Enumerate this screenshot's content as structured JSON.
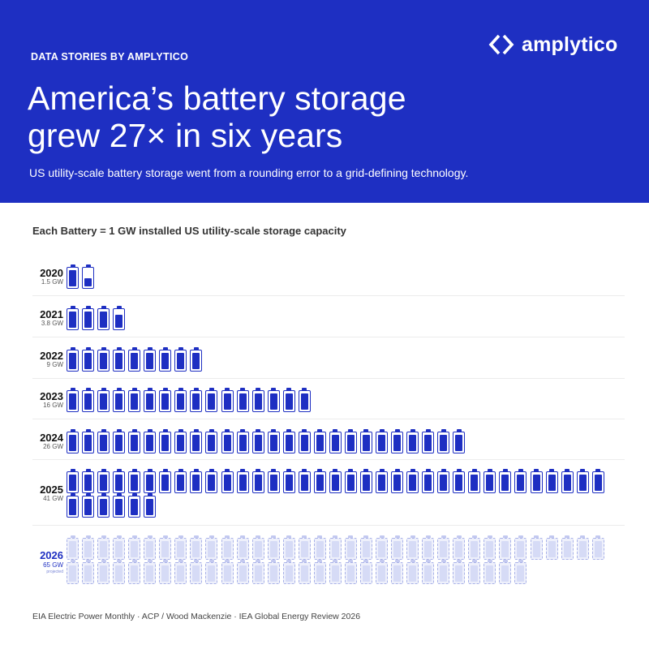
{
  "header": {
    "kicker": "DATA STORIES  BY AMPLYTICO",
    "brand": "amplytico",
    "brand_icon": "chevron-brackets-logo-icon",
    "title_line1": "America’s battery storage",
    "title_line2": "grew 27× in six years",
    "subtitle": "US utility-scale battery storage went from a rounding error to a grid-defining technology."
  },
  "legend": "Each Battery = 1 GW installed US utility-scale storage capacity",
  "colors": {
    "brand": "#1e2fc2",
    "projected": "#d6dbf6",
    "background": "#ffffff"
  },
  "chart_data": {
    "type": "table",
    "unit_per_icon": "1 GW",
    "rows": [
      {
        "year": "2020",
        "label": "1.5 GW",
        "value": 1.5
      },
      {
        "year": "2021",
        "label": "3.8 GW",
        "value": 3.8
      },
      {
        "year": "2022",
        "label": "9 GW",
        "value": 9
      },
      {
        "year": "2023",
        "label": "16 GW",
        "value": 16
      },
      {
        "year": "2024",
        "label": "26 GW",
        "value": 26
      },
      {
        "year": "2025",
        "label": "41 GW",
        "value": 41
      },
      {
        "year": "2026",
        "label": "65 GW",
        "value": 65,
        "note": "projected",
        "projected": true
      }
    ]
  },
  "footer": "EIA Electric Power Monthly · ACP / Wood Mackenzie · IEA Global Energy Review 2026"
}
